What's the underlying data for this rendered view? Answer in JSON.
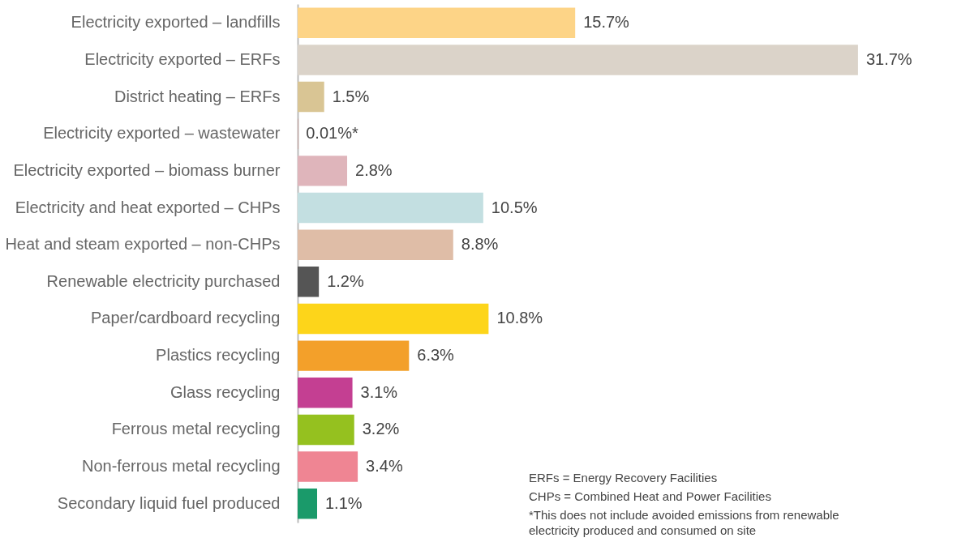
{
  "chart_data": {
    "type": "bar",
    "orientation": "horizontal",
    "categories": [
      "Electricity exported – landfills",
      "Electricity exported – ERFs",
      "District heating – ERFs",
      "Electricity exported – wastewater",
      "Electricity exported – biomass burner",
      "Electricity and heat exported – CHPs",
      "Heat and steam exported – non-CHPs",
      "Renewable electricity purchased",
      "Paper/cardboard recycling",
      "Plastics recycling",
      "Glass recycling",
      "Ferrous metal recycling",
      "Non-ferrous metal recycling",
      "Secondary liquid fuel produced"
    ],
    "values": [
      15.7,
      31.7,
      1.5,
      0.01,
      2.8,
      10.5,
      8.8,
      1.2,
      10.8,
      6.3,
      3.1,
      3.2,
      3.4,
      1.1
    ],
    "value_labels": [
      "15.7%",
      "31.7%",
      "1.5%",
      "0.01%*",
      "2.8%",
      "10.5%",
      "8.8%",
      "1.2%",
      "10.8%",
      "6.3%",
      "3.1%",
      "3.2%",
      "3.4%",
      "1.1%"
    ],
    "colors": [
      "#fdd487",
      "#dbd3c9",
      "#d9c594",
      "#e8553e",
      "#dfb5bb",
      "#c3dfe1",
      "#dfbda7",
      "#555555",
      "#fdd51a",
      "#f3a02a",
      "#c43f92",
      "#95c11f",
      "#ef8593",
      "#1a9a6a"
    ],
    "annotations": [
      "ERFs = Energy Recovery Facilities",
      "CHPs = Combined Heat and Power Facilities",
      "*This does not include avoided emissions from renewable electricity produced and consumed on site"
    ]
  }
}
